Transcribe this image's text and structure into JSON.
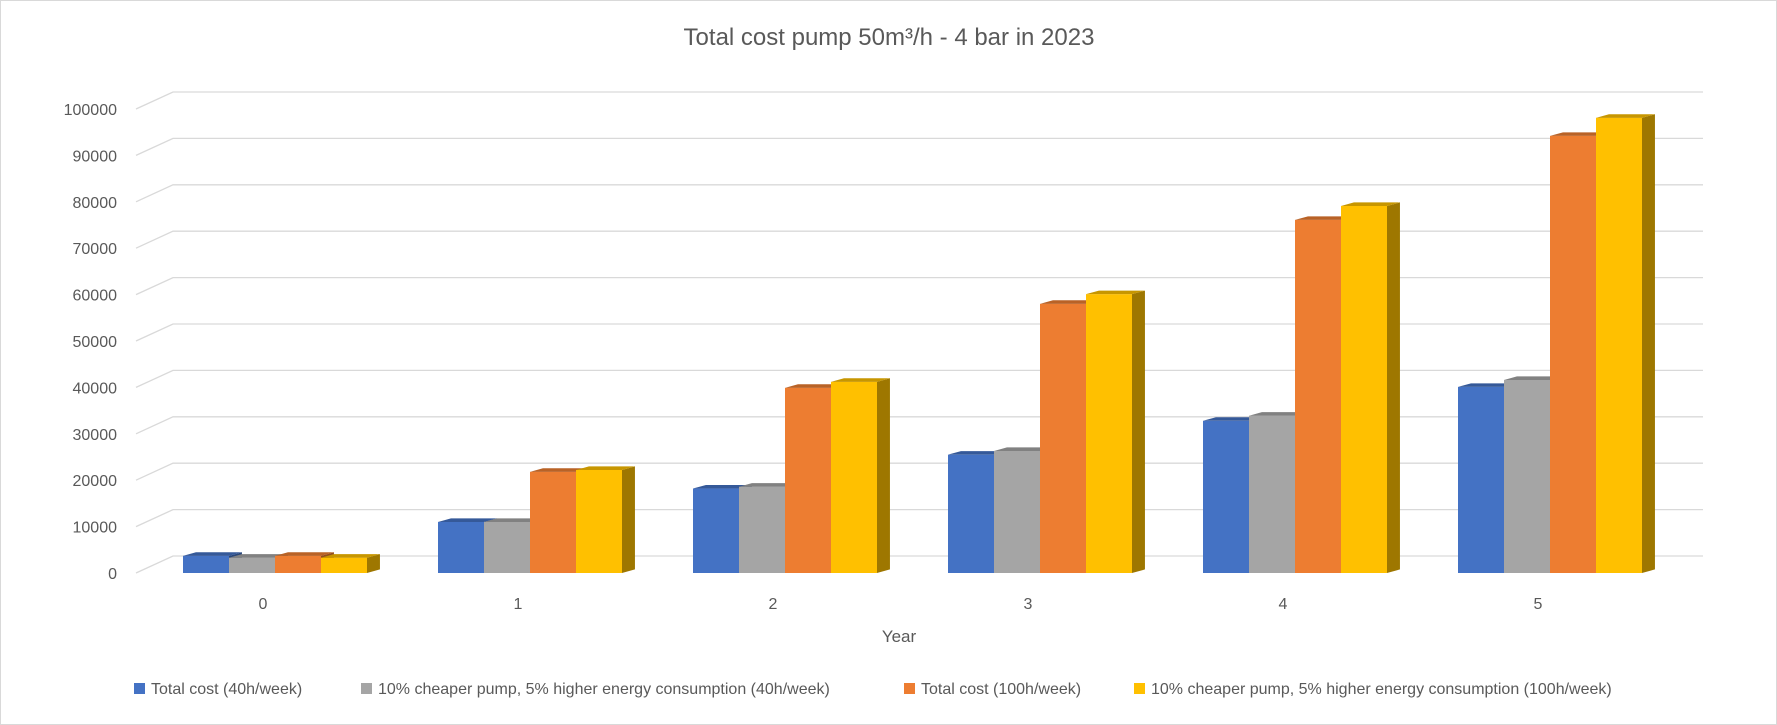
{
  "chart_data": {
    "type": "bar",
    "title": "Total cost pump 50m³/h - 4 bar in 2023",
    "xlabel": "Year",
    "ylabel": "",
    "categories": [
      "0",
      "1",
      "2",
      "3",
      "4",
      "5"
    ],
    "ylim": [
      0,
      100000
    ],
    "yticks": [
      "0",
      "10000",
      "20000",
      "30000",
      "40000",
      "50000",
      "60000",
      "70000",
      "80000",
      "90000",
      "100000"
    ],
    "grid": true,
    "legend_position": "bottom",
    "style": "3d-clustered-column",
    "series": [
      {
        "name": "Total cost (40h/week)",
        "color": "#4472C4",
        "values": [
          3700,
          11000,
          18200,
          25500,
          32800,
          40100
        ]
      },
      {
        "name": "10% cheaper pump, 5% higher energy consumption (40h/week)",
        "color": "#A5A5A5",
        "values": [
          3300,
          11000,
          18600,
          26300,
          33900,
          41600
        ]
      },
      {
        "name": "Total cost (100h/week)",
        "color": "#ED7D31",
        "values": [
          3700,
          21800,
          39900,
          58000,
          76100,
          94200
        ]
      },
      {
        "name": "10% cheaper pump, 5% higher energy consumption (100h/week)",
        "color": "#FFC000",
        "values": [
          3300,
          22200,
          41200,
          60100,
          79100,
          98100
        ]
      }
    ]
  }
}
